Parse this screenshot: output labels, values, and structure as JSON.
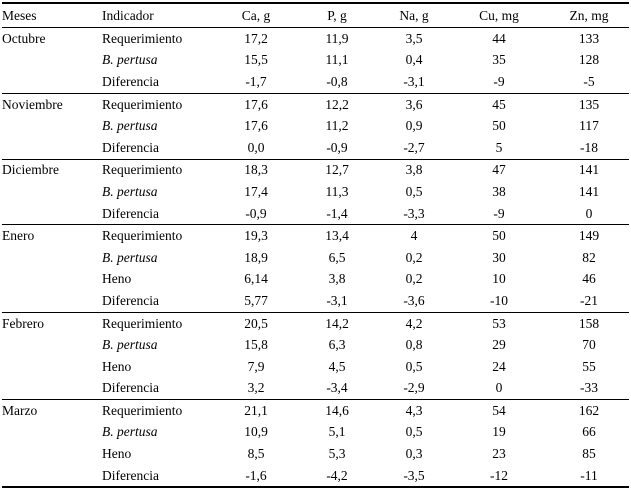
{
  "table": {
    "columns": [
      "Meses",
      "Indicador",
      "Ca, g",
      "P, g",
      "Na, g",
      "Cu, mg",
      "Zn, mg"
    ],
    "groups": [
      {
        "month": "Octubre",
        "month_bold": true,
        "rows": [
          {
            "indicator": "Requerimiento",
            "bold": true,
            "italic": false,
            "values": [
              "17,2",
              "11,9",
              "3,5",
              "44",
              "133"
            ]
          },
          {
            "indicator": "B. pertusa",
            "bold": false,
            "italic": true,
            "values": [
              "15,5",
              "11,1",
              "0,4",
              "35",
              "128"
            ]
          },
          {
            "indicator": "Diferencia",
            "bold": false,
            "italic": false,
            "values": [
              "-1,7",
              "-0,8",
              "-3,1",
              "-9",
              "-5"
            ]
          }
        ]
      },
      {
        "month": "Noviembre",
        "month_bold": false,
        "rows": [
          {
            "indicator": "Requerimiento",
            "bold": false,
            "italic": false,
            "values": [
              "17,6",
              "12,2",
              "3,6",
              "45",
              "135"
            ]
          },
          {
            "indicator": "B. pertusa",
            "bold": false,
            "italic": true,
            "values": [
              "17,6",
              "11,2",
              "0,9",
              "50",
              "117"
            ]
          },
          {
            "indicator": "Diferencia",
            "bold": false,
            "italic": false,
            "values": [
              "0,0",
              "-0,9",
              "-2,7",
              "5",
              "-18"
            ],
            "bold_values": [
              false,
              true,
              true,
              false,
              true
            ]
          }
        ]
      },
      {
        "month": "Diciembre",
        "month_bold": false,
        "rows": [
          {
            "indicator": "Requerimiento",
            "bold": false,
            "italic": false,
            "values": [
              "18,3",
              "12,7",
              "3,8",
              "47",
              "141"
            ]
          },
          {
            "indicator": "B. pertusa",
            "bold": false,
            "italic": true,
            "values": [
              "17,4",
              "11,3",
              "0,5",
              "38",
              "141"
            ]
          },
          {
            "indicator": "Diferencia",
            "bold": false,
            "italic": false,
            "values": [
              "-0,9",
              "-1,4",
              "-3,3",
              "-9",
              "0"
            ],
            "bold_values": [
              true,
              true,
              true,
              true,
              false
            ]
          }
        ]
      },
      {
        "month": "Enero",
        "month_bold": true,
        "rows": [
          {
            "indicator": "Requerimiento",
            "bold": true,
            "italic": false,
            "values": [
              "19,3",
              "13,4",
              "4",
              "50",
              "149"
            ]
          },
          {
            "indicator": "B. pertusa",
            "bold": false,
            "italic": true,
            "values": [
              "18,9",
              "6,5",
              "0,2",
              "30",
              "82"
            ]
          },
          {
            "indicator": "Heno",
            "bold": false,
            "italic": false,
            "values": [
              "6,14",
              "3,8",
              "0,2",
              "10",
              "46"
            ]
          },
          {
            "indicator": "Diferencia",
            "bold": false,
            "italic": false,
            "values": [
              "5,77",
              "-3,1",
              "-3,6",
              "-10",
              "-21"
            ],
            "bold_values": [
              false,
              true,
              true,
              true,
              true
            ]
          }
        ]
      },
      {
        "month": "Febrero",
        "month_bold": false,
        "rows": [
          {
            "indicator": "Requerimiento",
            "bold": false,
            "italic": false,
            "values": [
              "20,5",
              "14,2",
              "4,2",
              "53",
              "158"
            ]
          },
          {
            "indicator": "B. pertusa",
            "bold": false,
            "italic": true,
            "values": [
              "15,8",
              "6,3",
              "0,8",
              "29",
              "70"
            ]
          },
          {
            "indicator": "Heno",
            "bold": false,
            "italic": false,
            "values": [
              "7,9",
              "4,5",
              "0,5",
              "24",
              "55"
            ]
          },
          {
            "indicator": "Diferencia",
            "bold": false,
            "italic": false,
            "values": [
              "3,2",
              "-3,4",
              "-2,9",
              "0",
              "-33"
            ],
            "bold_values": [
              false,
              true,
              true,
              false,
              true
            ]
          }
        ]
      },
      {
        "month": "Marzo",
        "month_bold": false,
        "rows": [
          {
            "indicator": "Requerimiento",
            "bold": false,
            "italic": false,
            "values": [
              "21,1",
              "14,6",
              "4,3",
              "54",
              "162"
            ]
          },
          {
            "indicator": "B. pertusa",
            "bold": false,
            "italic": true,
            "values": [
              "10,9",
              "5,1",
              "0,5",
              "19",
              "66"
            ]
          },
          {
            "indicator": "Heno",
            "bold": false,
            "italic": false,
            "values": [
              "8,5",
              "5,3",
              "0,3",
              "23",
              "85"
            ]
          },
          {
            "indicator": "Diferencia",
            "bold": false,
            "italic": false,
            "values": [
              "-1,6",
              "-4,2",
              "-3,5",
              "-12",
              "-11"
            ]
          }
        ]
      }
    ]
  }
}
